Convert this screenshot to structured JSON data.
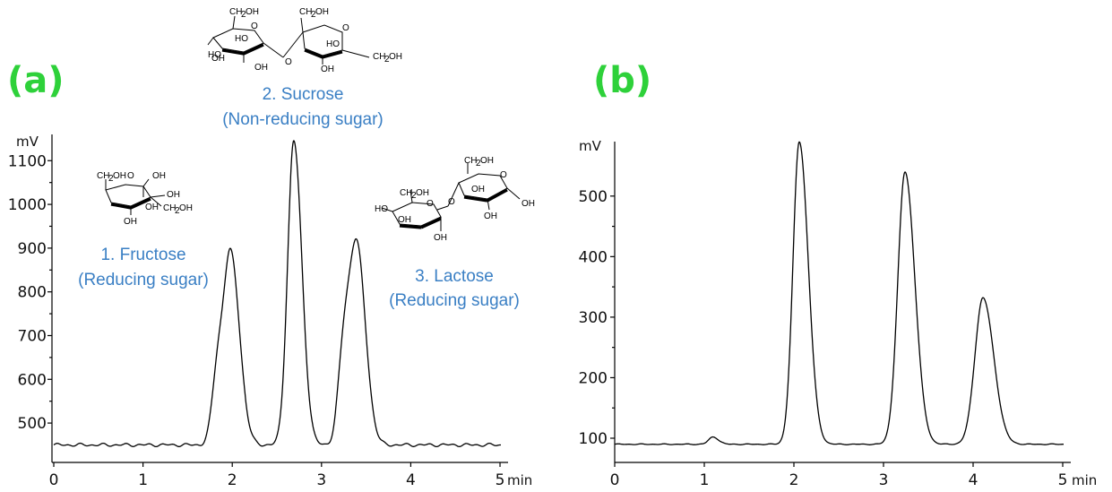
{
  "chart_data": [
    {
      "type": "line",
      "panel_label": "(a)",
      "y_unit": "mV",
      "x_unit": "min",
      "xlim": [
        0,
        5.05
      ],
      "ylim": [
        410,
        1160
      ],
      "xticks": [
        0,
        1,
        2,
        3,
        4,
        5
      ],
      "yticks": [
        500,
        600,
        700,
        800,
        900,
        1000,
        1100
      ],
      "baseline": 450,
      "peaks": [
        {
          "time": 1.98,
          "height": 890,
          "name": "1. Fructose",
          "note": "(Reducing sugar)"
        },
        {
          "time": 2.69,
          "height": 1145,
          "name": "2. Sucrose",
          "note": "(Non-reducing sugar)"
        },
        {
          "time": 3.39,
          "height": 915,
          "name": "3. Lactose",
          "note": "(Reducing sugar)"
        }
      ],
      "shoulders": [
        {
          "time": 1.83,
          "height": 735
        },
        {
          "time": 3.24,
          "height": 760
        }
      ]
    },
    {
      "type": "line",
      "panel_label": "(b)",
      "y_unit": "mV",
      "x_unit": "min",
      "xlim": [
        0,
        5.05
      ],
      "ylim": [
        60,
        590
      ],
      "xticks": [
        0,
        1,
        2,
        3,
        4,
        5
      ],
      "yticks": [
        100,
        200,
        300,
        400,
        500
      ],
      "baseline": 90,
      "peaks": [
        {
          "time": 1.1,
          "height": 102
        },
        {
          "time": 2.06,
          "height": 590
        },
        {
          "time": 3.24,
          "height": 540
        },
        {
          "time": 4.11,
          "height": 332
        }
      ]
    }
  ]
}
